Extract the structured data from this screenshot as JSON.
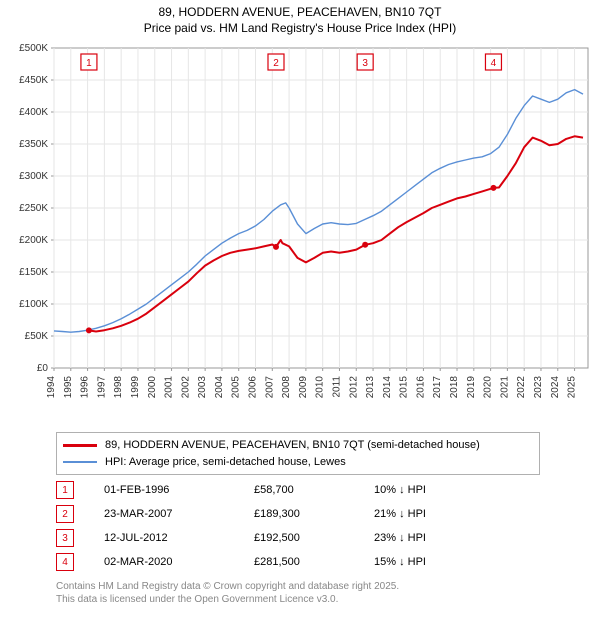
{
  "title_line1": "89, HODDERN AVENUE, PEACEHAVEN, BN10 7QT",
  "title_line2": "Price paid vs. HM Land Registry's House Price Index (HPI)",
  "chart": {
    "type": "line",
    "background_color": "#ffffff",
    "plot_bg": "#ffffff",
    "grid_color": "#e6e6e6",
    "axis_color": "#999999",
    "xlim": [
      1994,
      2025.8
    ],
    "ylim": [
      0,
      500000
    ],
    "ytick_step": 50000,
    "yticks": [
      "£0",
      "£50K",
      "£100K",
      "£150K",
      "£200K",
      "£250K",
      "£300K",
      "£350K",
      "£400K",
      "£450K",
      "£500K"
    ],
    "xticks": [
      "1994",
      "1995",
      "1996",
      "1997",
      "1998",
      "1999",
      "2000",
      "2001",
      "2002",
      "2003",
      "2004",
      "2005",
      "2006",
      "2007",
      "2008",
      "2009",
      "2010",
      "2011",
      "2012",
      "2013",
      "2014",
      "2015",
      "2016",
      "2017",
      "2018",
      "2019",
      "2020",
      "2021",
      "2022",
      "2023",
      "2024",
      "2025"
    ],
    "tick_fontsize": 10,
    "series": [
      {
        "name": "property",
        "color": "#d9000d",
        "width": 2.0,
        "points": [
          [
            1996.08,
            58700
          ],
          [
            1996.5,
            57000
          ],
          [
            1997,
            59000
          ],
          [
            1997.5,
            62000
          ],
          [
            1998,
            66000
          ],
          [
            1998.5,
            71000
          ],
          [
            1999,
            77000
          ],
          [
            1999.5,
            85000
          ],
          [
            2000,
            95000
          ],
          [
            2000.5,
            105000
          ],
          [
            2001,
            115000
          ],
          [
            2001.5,
            125000
          ],
          [
            2002,
            135000
          ],
          [
            2002.5,
            148000
          ],
          [
            2003,
            160000
          ],
          [
            2003.5,
            168000
          ],
          [
            2004,
            175000
          ],
          [
            2004.5,
            180000
          ],
          [
            2005,
            183000
          ],
          [
            2005.5,
            185000
          ],
          [
            2006,
            187000
          ],
          [
            2006.5,
            190000
          ],
          [
            2007,
            193000
          ],
          [
            2007.22,
            189300
          ],
          [
            2007.5,
            200000
          ],
          [
            2007.6,
            195000
          ],
          [
            2008,
            190000
          ],
          [
            2008.5,
            172000
          ],
          [
            2009,
            165000
          ],
          [
            2009.5,
            172000
          ],
          [
            2010,
            180000
          ],
          [
            2010.5,
            182000
          ],
          [
            2011,
            180000
          ],
          [
            2011.5,
            182000
          ],
          [
            2012,
            185000
          ],
          [
            2012.53,
            192500
          ],
          [
            2013,
            195000
          ],
          [
            2013.5,
            200000
          ],
          [
            2014,
            210000
          ],
          [
            2014.5,
            220000
          ],
          [
            2015,
            228000
          ],
          [
            2015.5,
            235000
          ],
          [
            2016,
            242000
          ],
          [
            2016.5,
            250000
          ],
          [
            2017,
            255000
          ],
          [
            2017.5,
            260000
          ],
          [
            2018,
            265000
          ],
          [
            2018.5,
            268000
          ],
          [
            2019,
            272000
          ],
          [
            2019.5,
            276000
          ],
          [
            2020,
            280000
          ],
          [
            2020.17,
            281500
          ],
          [
            2020.5,
            282000
          ],
          [
            2021,
            300000
          ],
          [
            2021.5,
            320000
          ],
          [
            2022,
            345000
          ],
          [
            2022.5,
            360000
          ],
          [
            2023,
            355000
          ],
          [
            2023.5,
            348000
          ],
          [
            2024,
            350000
          ],
          [
            2024.5,
            358000
          ],
          [
            2025,
            362000
          ],
          [
            2025.5,
            360000
          ]
        ]
      },
      {
        "name": "hpi",
        "color": "#5a8fd6",
        "width": 1.4,
        "points": [
          [
            1994,
            58000
          ],
          [
            1994.5,
            57000
          ],
          [
            1995,
            56000
          ],
          [
            1995.5,
            57000
          ],
          [
            1996,
            59000
          ],
          [
            1996.5,
            62000
          ],
          [
            1997,
            66000
          ],
          [
            1997.5,
            71000
          ],
          [
            1998,
            77000
          ],
          [
            1998.5,
            84000
          ],
          [
            1999,
            92000
          ],
          [
            1999.5,
            100000
          ],
          [
            2000,
            110000
          ],
          [
            2000.5,
            120000
          ],
          [
            2001,
            130000
          ],
          [
            2001.5,
            140000
          ],
          [
            2002,
            150000
          ],
          [
            2002.5,
            162000
          ],
          [
            2003,
            175000
          ],
          [
            2003.5,
            185000
          ],
          [
            2004,
            195000
          ],
          [
            2004.5,
            203000
          ],
          [
            2005,
            210000
          ],
          [
            2005.5,
            215000
          ],
          [
            2006,
            222000
          ],
          [
            2006.5,
            232000
          ],
          [
            2007,
            245000
          ],
          [
            2007.5,
            255000
          ],
          [
            2007.8,
            258000
          ],
          [
            2008,
            250000
          ],
          [
            2008.5,
            225000
          ],
          [
            2009,
            210000
          ],
          [
            2009.5,
            218000
          ],
          [
            2010,
            225000
          ],
          [
            2010.5,
            227000
          ],
          [
            2011,
            225000
          ],
          [
            2011.5,
            224000
          ],
          [
            2012,
            226000
          ],
          [
            2012.5,
            232000
          ],
          [
            2013,
            238000
          ],
          [
            2013.5,
            245000
          ],
          [
            2014,
            255000
          ],
          [
            2014.5,
            265000
          ],
          [
            2015,
            275000
          ],
          [
            2015.5,
            285000
          ],
          [
            2016,
            295000
          ],
          [
            2016.5,
            305000
          ],
          [
            2017,
            312000
          ],
          [
            2017.5,
            318000
          ],
          [
            2018,
            322000
          ],
          [
            2018.5,
            325000
          ],
          [
            2019,
            328000
          ],
          [
            2019.5,
            330000
          ],
          [
            2020,
            335000
          ],
          [
            2020.5,
            345000
          ],
          [
            2021,
            365000
          ],
          [
            2021.5,
            390000
          ],
          [
            2022,
            410000
          ],
          [
            2022.5,
            425000
          ],
          [
            2023,
            420000
          ],
          [
            2023.5,
            415000
          ],
          [
            2024,
            420000
          ],
          [
            2024.5,
            430000
          ],
          [
            2025,
            435000
          ],
          [
            2025.5,
            428000
          ]
        ]
      }
    ],
    "sale_markers": [
      {
        "n": "1",
        "x": 1996.08,
        "color": "#d9000d"
      },
      {
        "n": "2",
        "x": 2007.22,
        "color": "#d9000d"
      },
      {
        "n": "3",
        "x": 2012.53,
        "color": "#d9000d"
      },
      {
        "n": "4",
        "x": 2020.17,
        "color": "#d9000d"
      }
    ]
  },
  "legend": {
    "items": [
      {
        "color": "#d9000d",
        "width": 3,
        "label": "89, HODDERN AVENUE, PEACEHAVEN, BN10 7QT (semi-detached house)"
      },
      {
        "color": "#5a8fd6",
        "width": 2,
        "label": "HPI: Average price, semi-detached house, Lewes"
      }
    ]
  },
  "sales": [
    {
      "n": "1",
      "date": "01-FEB-1996",
      "price": "£58,700",
      "diff": "10% ↓ HPI",
      "color": "#d9000d"
    },
    {
      "n": "2",
      "date": "23-MAR-2007",
      "price": "£189,300",
      "diff": "21% ↓ HPI",
      "color": "#d9000d"
    },
    {
      "n": "3",
      "date": "12-JUL-2012",
      "price": "£192,500",
      "diff": "23% ↓ HPI",
      "color": "#d9000d"
    },
    {
      "n": "4",
      "date": "02-MAR-2020",
      "price": "£281,500",
      "diff": "15% ↓ HPI",
      "color": "#d9000d"
    }
  ],
  "footer_line1": "Contains HM Land Registry data © Crown copyright and database right 2025.",
  "footer_line2": "This data is licensed under the Open Government Licence v3.0."
}
